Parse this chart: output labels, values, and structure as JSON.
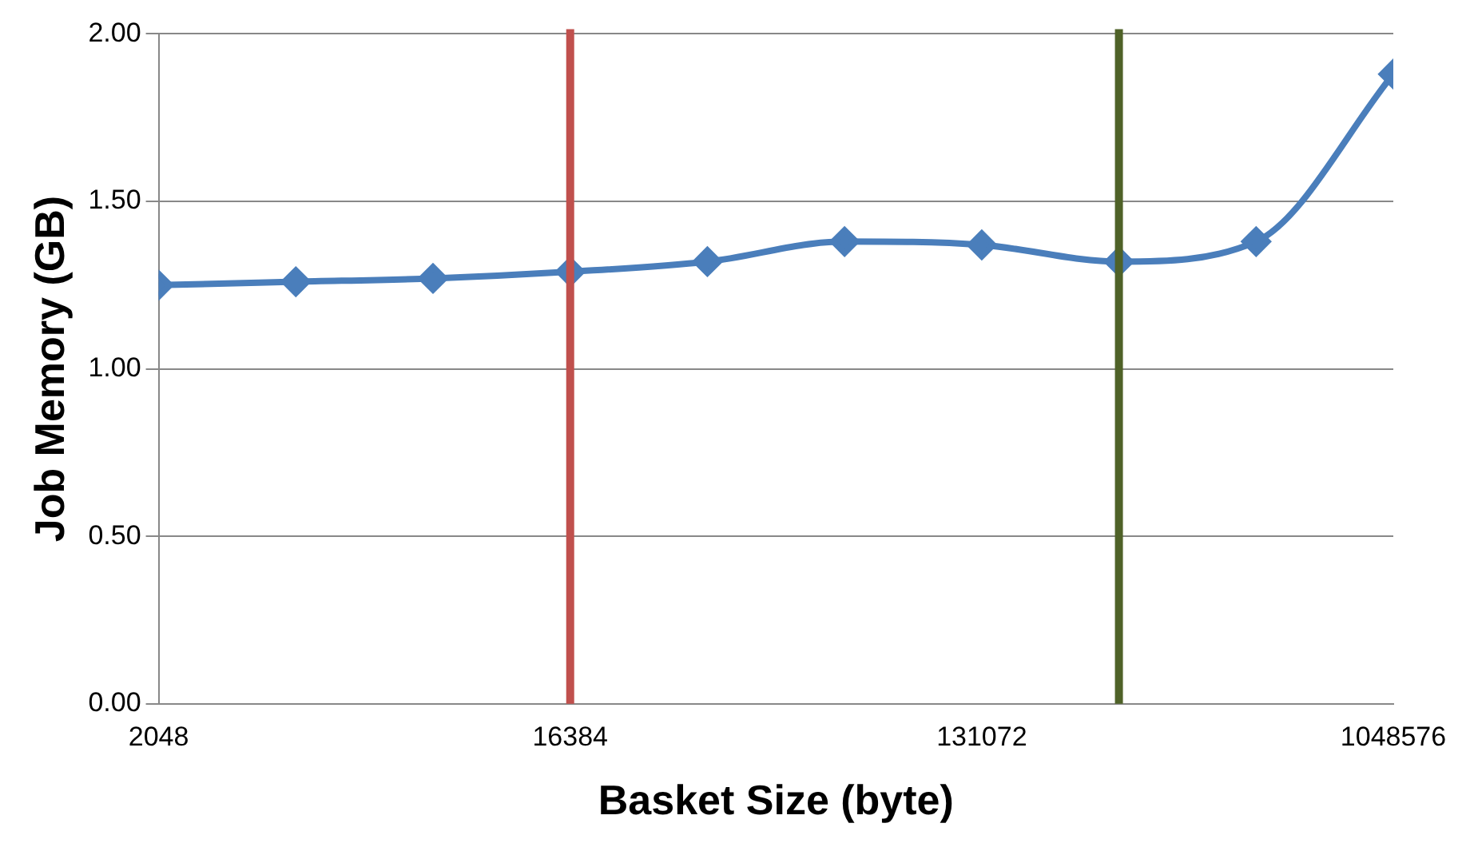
{
  "chart_data": {
    "type": "line",
    "xlabel": "Basket Size (byte)",
    "ylabel": "Job Memory (GB)",
    "x": [
      2048,
      4096,
      8192,
      16384,
      32768,
      65536,
      131072,
      262144,
      524288,
      1048576
    ],
    "series": [
      {
        "color": "#4a7ebb",
        "values": [
          1.25,
          1.26,
          1.27,
          1.29,
          1.32,
          1.38,
          1.37,
          1.32,
          1.38,
          1.88
        ]
      }
    ],
    "log": "x",
    "xlim": [
      2048,
      1048576
    ],
    "xticks": [
      2048,
      16384,
      131072,
      1048576
    ],
    "ylim": [
      0,
      2
    ],
    "yticks": [
      {
        "value": 0,
        "label": "0.00"
      },
      {
        "value": 0.5,
        "label": "0.50"
      },
      {
        "value": 1,
        "label": "1.00"
      },
      {
        "value": 1.5,
        "label": "1.50"
      },
      {
        "value": 2,
        "label": "2.00"
      }
    ],
    "grid": "y",
    "legend": false,
    "marker": "diamond",
    "line_style": "solid",
    "ref_lines": [
      {
        "axis": "x",
        "value": 16384,
        "color": "#c0504d"
      },
      {
        "axis": "x",
        "value": 262144,
        "color": "#4f6228"
      }
    ]
  }
}
